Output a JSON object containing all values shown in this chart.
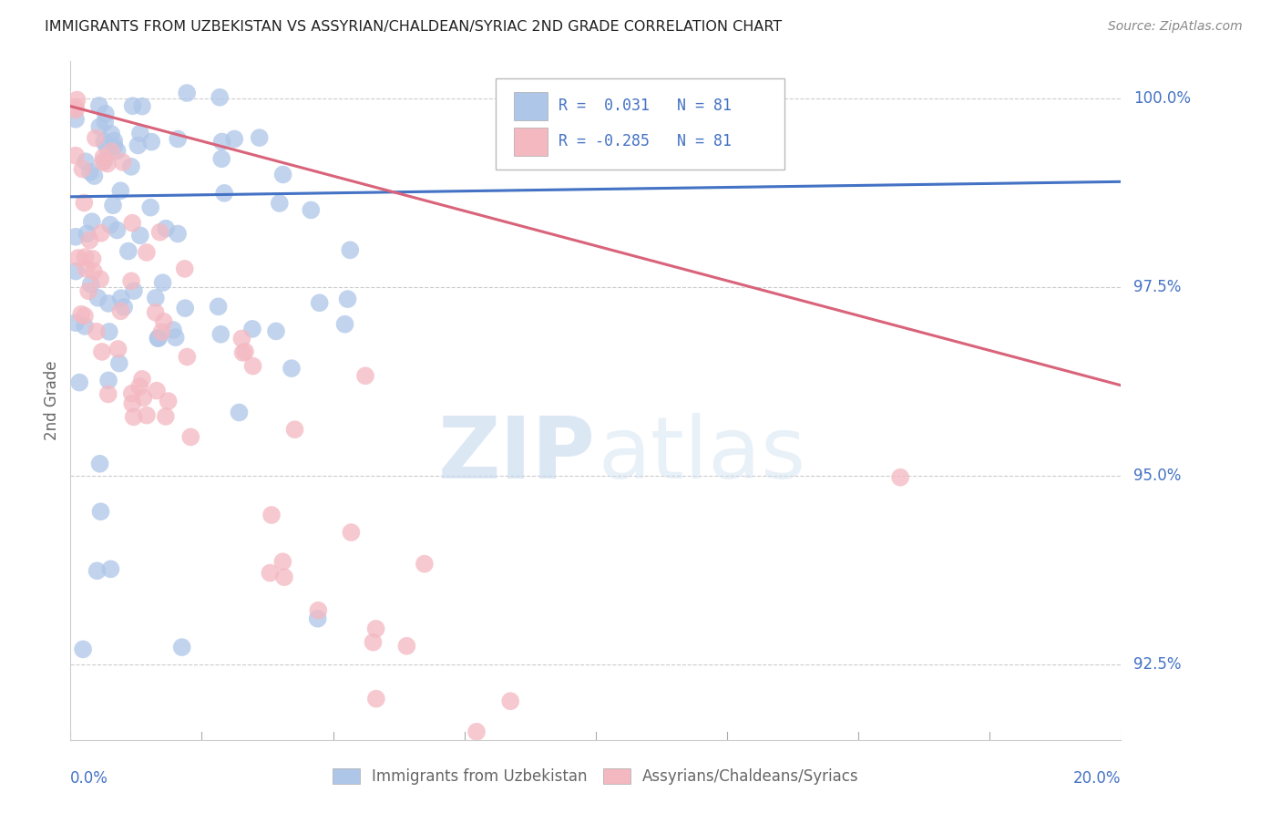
{
  "title": "IMMIGRANTS FROM UZBEKISTAN VS ASSYRIAN/CHALDEAN/SYRIAC 2ND GRADE CORRELATION CHART",
  "source": "Source: ZipAtlas.com",
  "ylabel": "2nd Grade",
  "ylabel_right_labels": [
    "100.0%",
    "97.5%",
    "95.0%",
    "92.5%"
  ],
  "ylabel_right_values": [
    1.0,
    0.975,
    0.95,
    0.925
  ],
  "blue_R": 0.031,
  "blue_N": 81,
  "pink_R": -0.285,
  "pink_N": 81,
  "blue_color": "#aec6e8",
  "pink_color": "#f4b8c1",
  "blue_line_color": "#4472c4",
  "pink_line_color": "#d9637a",
  "watermark_zip_color": "#c8d8f0",
  "watermark_atlas_color": "#b8cce4",
  "grid_color": "#cccccc",
  "axis_color": "#4472c4",
  "background_color": "#ffffff",
  "xlim": [
    0.0,
    0.2
  ],
  "ylim": [
    0.915,
    1.005
  ],
  "blue_trend": [
    0.987,
    0.989
  ],
  "pink_trend": [
    0.999,
    0.962
  ]
}
